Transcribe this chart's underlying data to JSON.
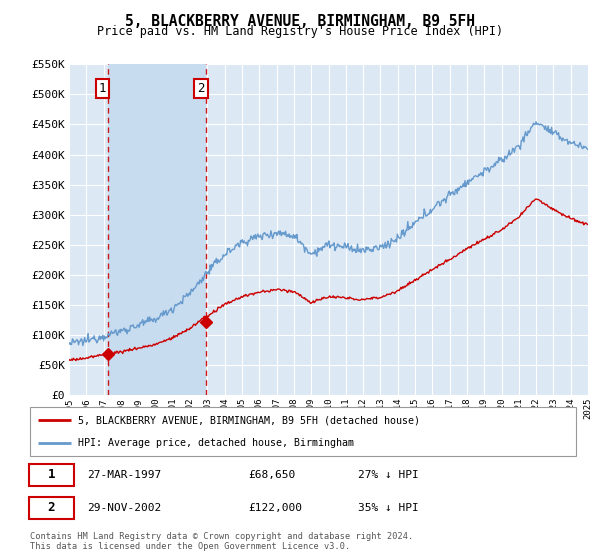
{
  "title": "5, BLACKBERRY AVENUE, BIRMINGHAM, B9 5FH",
  "subtitle": "Price paid vs. HM Land Registry's House Price Index (HPI)",
  "ylabel_ticks": [
    "£0",
    "£50K",
    "£100K",
    "£150K",
    "£200K",
    "£250K",
    "£300K",
    "£350K",
    "£400K",
    "£450K",
    "£500K",
    "£550K"
  ],
  "ytick_values": [
    0,
    50000,
    100000,
    150000,
    200000,
    250000,
    300000,
    350000,
    400000,
    450000,
    500000,
    550000
  ],
  "xmin": 1995,
  "xmax": 2025,
  "ymin": 0,
  "ymax": 550000,
  "bg_color": "#dce9f5",
  "shade_color": "#c8dcf0",
  "grid_color": "#ffffff",
  "sale1_date": 1997.23,
  "sale1_price": 68650,
  "sale1_label": "1",
  "sale2_date": 2002.91,
  "sale2_price": 122000,
  "sale2_label": "2",
  "red_line_color": "#cc0000",
  "blue_line_color": "#6699cc",
  "legend_label_red": "5, BLACKBERRY AVENUE, BIRMINGHAM, B9 5FH (detached house)",
  "legend_label_blue": "HPI: Average price, detached house, Birmingham",
  "table_row1": [
    "1",
    "27-MAR-1997",
    "£68,650",
    "27% ↓ HPI"
  ],
  "table_row2": [
    "2",
    "29-NOV-2002",
    "£122,000",
    "35% ↓ HPI"
  ],
  "footer": "Contains HM Land Registry data © Crown copyright and database right 2024.\nThis data is licensed under the Open Government Licence v3.0."
}
